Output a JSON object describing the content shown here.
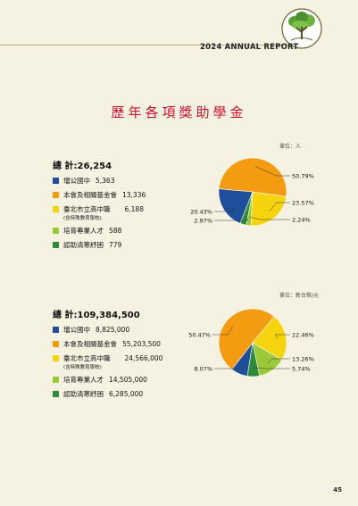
{
  "header": {
    "report_label": "2024 ANNUAL REPORT",
    "logo_icon": "tree-emblem-icon"
  },
  "page_title": "歷年各項獎助學金",
  "colors": {
    "primary_school": "#1f4e9a",
    "foundation": "#f39c12",
    "taipei_high": "#f5d40f",
    "talent": "#9bc93a",
    "hardship": "#2e8b3a",
    "title": "#c8102e",
    "background": "#f6f2e2"
  },
  "sections": [
    {
      "unit": "單位：人",
      "total_label": "總 計:",
      "total_value": "26,254",
      "legend": [
        {
          "label": "瑠公國中",
          "sublabel": "",
          "value": "5,363"
        },
        {
          "label": "本會及相關基金會",
          "sublabel": "",
          "value": "13,336"
        },
        {
          "label": "臺北市立高中職",
          "sublabel": "(含特殊教育學校)",
          "value": "6,188"
        },
        {
          "label": "培育專業人才",
          "sublabel": "",
          "value": "588"
        },
        {
          "label": "認助清寒紓困",
          "sublabel": "",
          "value": "779"
        }
      ],
      "pie_labels": [
        "50.79%",
        "23.57%",
        "2.24%",
        "2.97%",
        "20.43%"
      ]
    },
    {
      "unit": "單位：新台幣/元",
      "total_label": "總 計:",
      "total_value": "109,384,500",
      "legend": [
        {
          "label": "瑠公國中",
          "sublabel": "",
          "value": "8,825,000"
        },
        {
          "label": "本會及相關基金會",
          "sublabel": "",
          "value": "55,203,500"
        },
        {
          "label": "臺北市立高中職",
          "sublabel": "(含特殊教育學校)",
          "value": "24,566,000"
        },
        {
          "label": "培育專業人才",
          "sublabel": "",
          "value": "14,505,000"
        },
        {
          "label": "認助清寒紓困",
          "sublabel": "",
          "value": "6,285,000"
        }
      ],
      "pie_labels": [
        "50.47%",
        "22.46%",
        "13.26%",
        "5.74%",
        "8.07%"
      ]
    }
  ],
  "chart_data": [
    {
      "type": "pie",
      "unit": "人",
      "categories": [
        "瑠公國中",
        "本會及相關基金會",
        "臺北市立高中職",
        "培育專業人才",
        "認助清寒紓困"
      ],
      "values": [
        20.43,
        50.79,
        23.57,
        2.24,
        2.97
      ],
      "value_labels": [
        "20.43%",
        "50.79%",
        "23.57%",
        "2.24%",
        "2.97%"
      ]
    },
    {
      "type": "pie",
      "unit": "新台幣/元",
      "categories": [
        "瑠公國中",
        "本會及相關基金會",
        "臺北市立高中職",
        "培育專業人才",
        "認助清寒紓困"
      ],
      "values": [
        8.07,
        50.47,
        22.46,
        13.26,
        5.74
      ],
      "value_labels": [
        "8.07%",
        "50.47%",
        "22.46%",
        "13.26%",
        "5.74%"
      ]
    }
  ],
  "page_number": "45"
}
